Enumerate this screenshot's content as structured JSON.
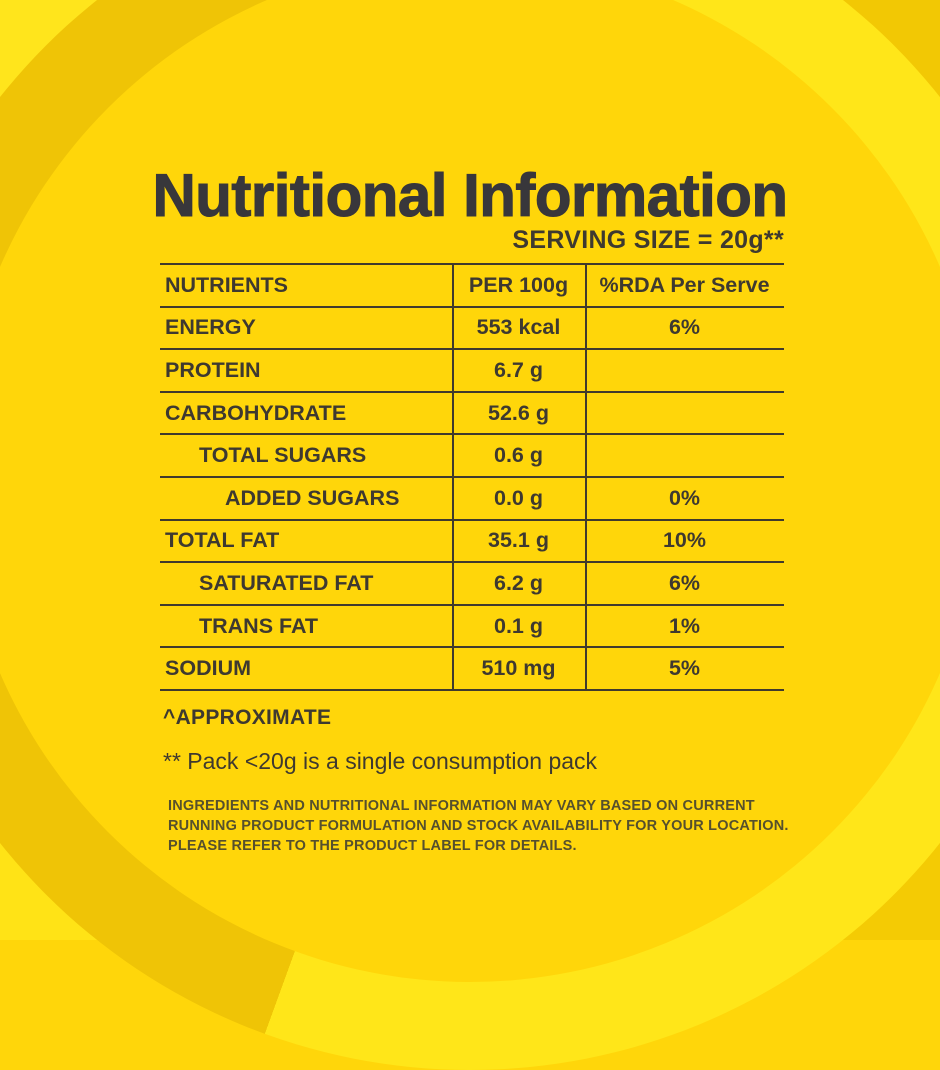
{
  "page": {
    "title": "Nutritional Information",
    "serving_size_label": "SERVING SIZE = 20g**"
  },
  "table": {
    "headers": [
      "NUTRIENTS",
      "PER 100g",
      "%RDA Per Serve"
    ],
    "rows": [
      {
        "nutrient": "ENERGY",
        "per_100g": "553 kcal",
        "rda": "6%",
        "indent": 0
      },
      {
        "nutrient": "PROTEIN",
        "per_100g": "6.7 g",
        "rda": "",
        "indent": 0
      },
      {
        "nutrient": "CARBOHYDRATE",
        "per_100g": "52.6 g",
        "rda": "",
        "indent": 0
      },
      {
        "nutrient": "TOTAL SUGARS",
        "per_100g": "0.6 g",
        "rda": "",
        "indent": 1
      },
      {
        "nutrient": "ADDED SUGARS",
        "per_100g": "0.0 g",
        "rda": "0%",
        "indent": 2
      },
      {
        "nutrient": "TOTAL FAT",
        "per_100g": "35.1 g",
        "rda": "10%",
        "indent": 0
      },
      {
        "nutrient": "SATURATED FAT",
        "per_100g": "6.2 g",
        "rda": "6%",
        "indent": 1
      },
      {
        "nutrient": "TRANS FAT",
        "per_100g": "0.1 g",
        "rda": "1%",
        "indent": 1
      },
      {
        "nutrient": "SODIUM",
        "per_100g": "510 mg",
        "rda": "5%",
        "indent": 0
      }
    ]
  },
  "notes": {
    "approximate": "^APPROXIMATE",
    "pack_note": "** Pack <20g is a single consumption pack",
    "disclaimer_line1": "INGREDIENTS AND NUTRITIONAL INFORMATION MAY VARY BASED ON CURRENT",
    "disclaimer_line2": "RUNNING PRODUCT FORMULATION AND STOCK AVAILABILITY FOR YOUR LOCATION.",
    "disclaimer_line3": "PLEASE REFER TO THE PRODUCT LABEL FOR DETAILS."
  },
  "colors": {
    "inner_circle": "#FFD60A",
    "ring_bright": "#FFE619",
    "ring_dark": "#EFC406",
    "outer_bright": "#FFE316",
    "outer_dark": "#F2C804",
    "text_main": "#3E3930",
    "title_text": "#38373B",
    "disclaimer_text": "#56502D",
    "table_lines": "#403A2D"
  }
}
